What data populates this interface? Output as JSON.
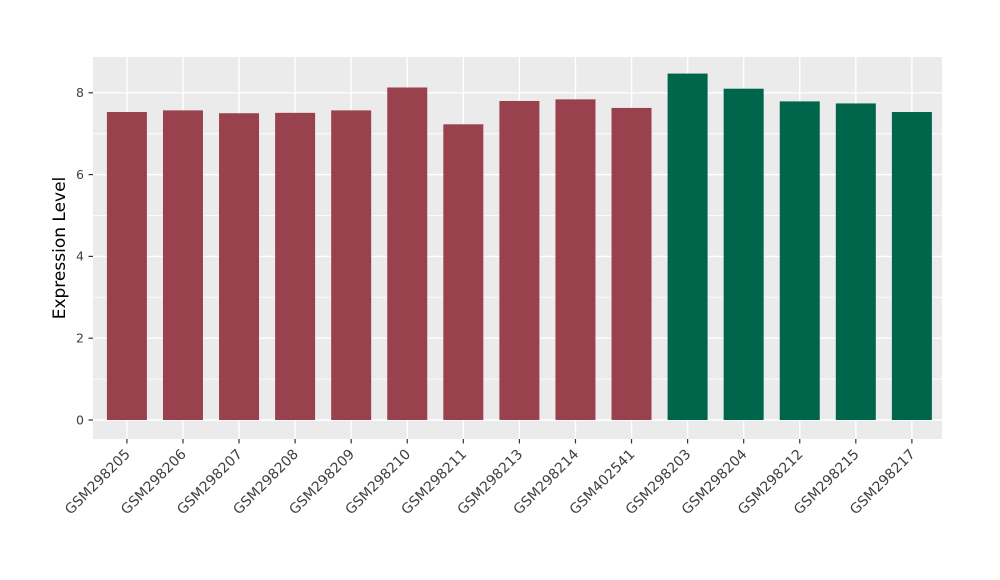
{
  "chart_data": {
    "type": "bar",
    "title": "",
    "xlabel": "",
    "ylabel": "Expression Level",
    "categories": [
      "GSM298205",
      "GSM298206",
      "GSM298207",
      "GSM298208",
      "GSM298209",
      "GSM298210",
      "GSM298211",
      "GSM298213",
      "GSM298214",
      "GSM402541",
      "GSM298203",
      "GSM298204",
      "GSM298212",
      "GSM298215",
      "GSM298217"
    ],
    "values": [
      7.53,
      7.57,
      7.5,
      7.51,
      7.57,
      8.13,
      7.23,
      7.8,
      7.84,
      7.63,
      8.47,
      8.1,
      7.79,
      7.74,
      7.53
    ],
    "groups": [
      "group1",
      "group1",
      "group1",
      "group1",
      "group1",
      "group1",
      "group1",
      "group1",
      "group1",
      "group1",
      "group2",
      "group2",
      "group2",
      "group2",
      "group2"
    ],
    "group_colors": {
      "group1": "#9A414E",
      "group2": "#00664B"
    },
    "yticks": [
      0,
      2,
      4,
      6,
      8
    ],
    "ylim": [
      -0.46,
      8.88
    ],
    "grid": true,
    "legend": "none",
    "panel_bg": "#EBEBEB",
    "gridline_color": "#FFFFFF",
    "tick_color": "#333333",
    "tick_label_color": "#404040",
    "axis_title_color": "#000000"
  }
}
